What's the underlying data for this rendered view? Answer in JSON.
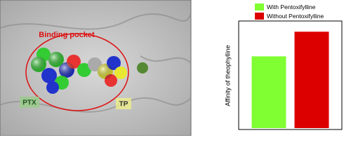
{
  "image_labels": {
    "pocket": "Binding pocket",
    "ptx": "PTX",
    "tp": "TP"
  },
  "chart_data": {
    "type": "bar",
    "ylabel": "Affinity of theophylline",
    "categories": [
      "With Pentoxifylline",
      "Without Pentoxifylline"
    ],
    "series": [
      {
        "name": "With Pentoxifylline",
        "color": "#80ff33",
        "values": [
          0.67,
          null
        ]
      },
      {
        "name": "Without Pentoxifylline",
        "color": "#dd0000",
        "values": [
          null,
          0.9
        ]
      }
    ],
    "ylim": [
      0,
      1
    ]
  }
}
